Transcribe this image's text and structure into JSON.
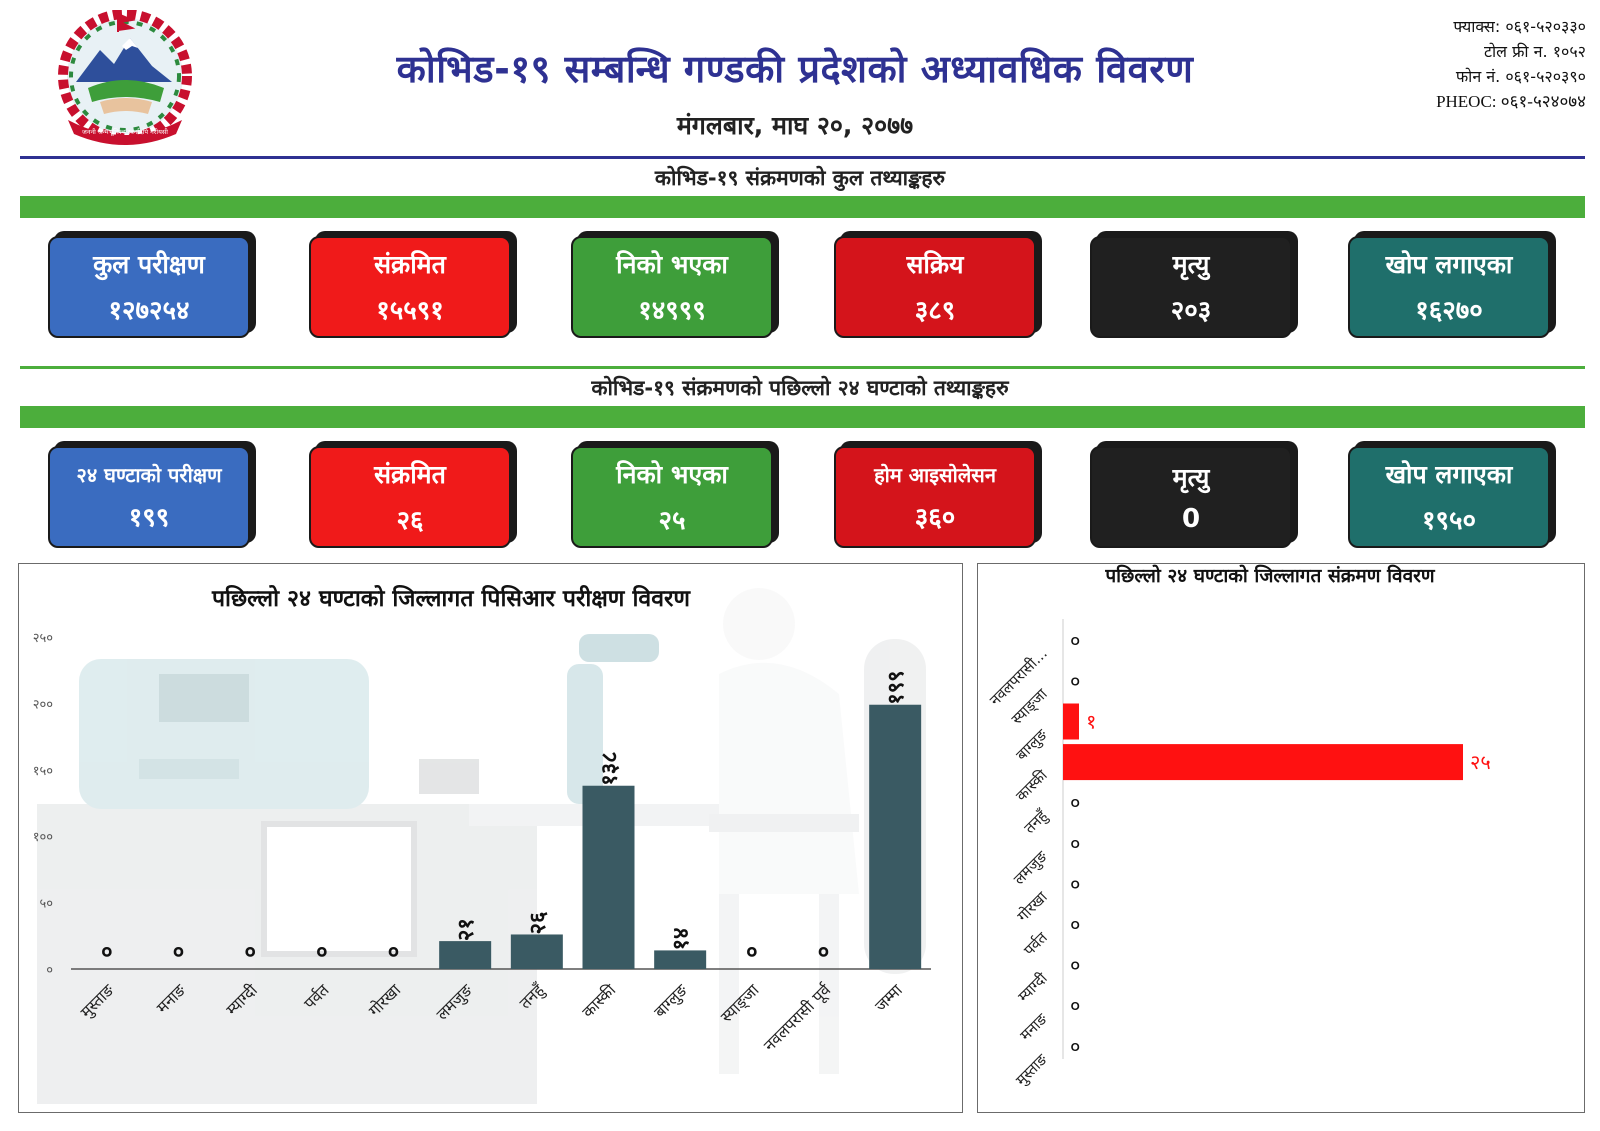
{
  "header": {
    "title": "कोभिड-१९ सम्बन्धि गण्डकी प्रदेशको अध्यावधिक विवरण",
    "date": "मंगलबार, माघ २०, २०७७",
    "contacts": [
      "फ्याक्स: ०६१-५२०३३०",
      "टोल फ्री न. १०५२",
      "फोन नं. ०६१-५२०३९०",
      "PHEOC: ०६१-५२४०७४"
    ],
    "emblem_motto": "जननी जन्मभूमिश्च स्वर्गादपि गरीयसी"
  },
  "total_section": {
    "title": "कोभिड-१९ संक्रमणको कुल तथ्याङ्कहरु",
    "cards": [
      {
        "label": "कुल परीक्षण",
        "value": "१२७२५४",
        "color": "#3a6cc0"
      },
      {
        "label": "संक्रमित",
        "value": "१५५९१",
        "color": "#f01a1a"
      },
      {
        "label": "निको भएका",
        "value": "१४९९९",
        "color": "#3e9e3a"
      },
      {
        "label": "सक्रिय",
        "value": "३८९",
        "color": "#d4141b"
      },
      {
        "label": "मृत्यु",
        "value": "२०३",
        "color": "#202020"
      },
      {
        "label": "खोप लगाएका",
        "value": "१६२७०",
        "color": "#1f6f6b"
      }
    ]
  },
  "last24_section": {
    "title": "कोभिड-१९ संक्रमणको पछिल्लो २४ घण्टाको तथ्याङ्कहरु",
    "cards": [
      {
        "label": "२४ घण्टाको परीक्षण",
        "value": "१९९",
        "color": "#3a6cc0"
      },
      {
        "label": "संक्रमित",
        "value": "२६",
        "color": "#f01a1a"
      },
      {
        "label": "निको भएका",
        "value": "२५",
        "color": "#3e9e3a"
      },
      {
        "label": "होम आइसोलेसन",
        "value": "३६०",
        "color": "#d4141b"
      },
      {
        "label": "मृत्यु",
        "value": "0",
        "color": "#202020"
      },
      {
        "label": "खोप लगाएका",
        "value": "१९५०",
        "color": "#1f6f6b"
      }
    ]
  },
  "chart_data": [
    {
      "type": "bar",
      "orientation": "vertical",
      "title": "पछिल्लो २४ घण्टाको जिल्लागत पिसिआर परीक्षण विवरण",
      "xlabel": "",
      "ylabel": "",
      "categories": [
        "मुस्ताङ",
        "मनाङ",
        "म्याग्दी",
        "पर्वत",
        "गोरखा",
        "लमजुङ",
        "तनहुँ",
        "कास्की",
        "बाग्लुङ",
        "स्याङ्जा",
        "नवलपरासी पूर्व",
        "जम्मा"
      ],
      "values": [
        0,
        0,
        0,
        0,
        0,
        21,
        26,
        138,
        14,
        0,
        0,
        199
      ],
      "data_labels": [
        "०",
        "०",
        "०",
        "०",
        "०",
        "२१",
        "२६",
        "१३८",
        "१४",
        "०",
        "०",
        "१९९"
      ],
      "yticks": [
        0,
        50,
        100,
        150,
        200,
        250
      ],
      "ytick_labels": [
        "०",
        "५०",
        "१००",
        "१५०",
        "२००",
        "२५०"
      ],
      "ylim": [
        0,
        250
      ],
      "grid": false,
      "legend": "none",
      "bar_color": "#3a5a63"
    },
    {
      "type": "bar",
      "orientation": "horizontal",
      "title": "पछिल्लो २४ घण्टाको जिल्लागत संक्रमण विवरण",
      "xlabel": "",
      "ylabel": "",
      "categories": [
        "नवलपरासी...",
        "स्याङ्जा",
        "बाग्लुङ",
        "कास्की",
        "तनहुँ",
        "लमजुङ",
        "गोरखा",
        "पर्वत",
        "म्याग्दी",
        "मनाङ",
        "मुस्ताङ"
      ],
      "values": [
        0,
        0,
        1,
        25,
        0,
        0,
        0,
        0,
        0,
        0,
        0
      ],
      "data_labels": [
        "०",
        "०",
        "१",
        "२५",
        "०",
        "०",
        "०",
        "०",
        "०",
        "०",
        "०"
      ],
      "xlim": [
        0,
        25
      ],
      "grid": false,
      "legend": "none",
      "bar_color": "#ff1111"
    }
  ]
}
